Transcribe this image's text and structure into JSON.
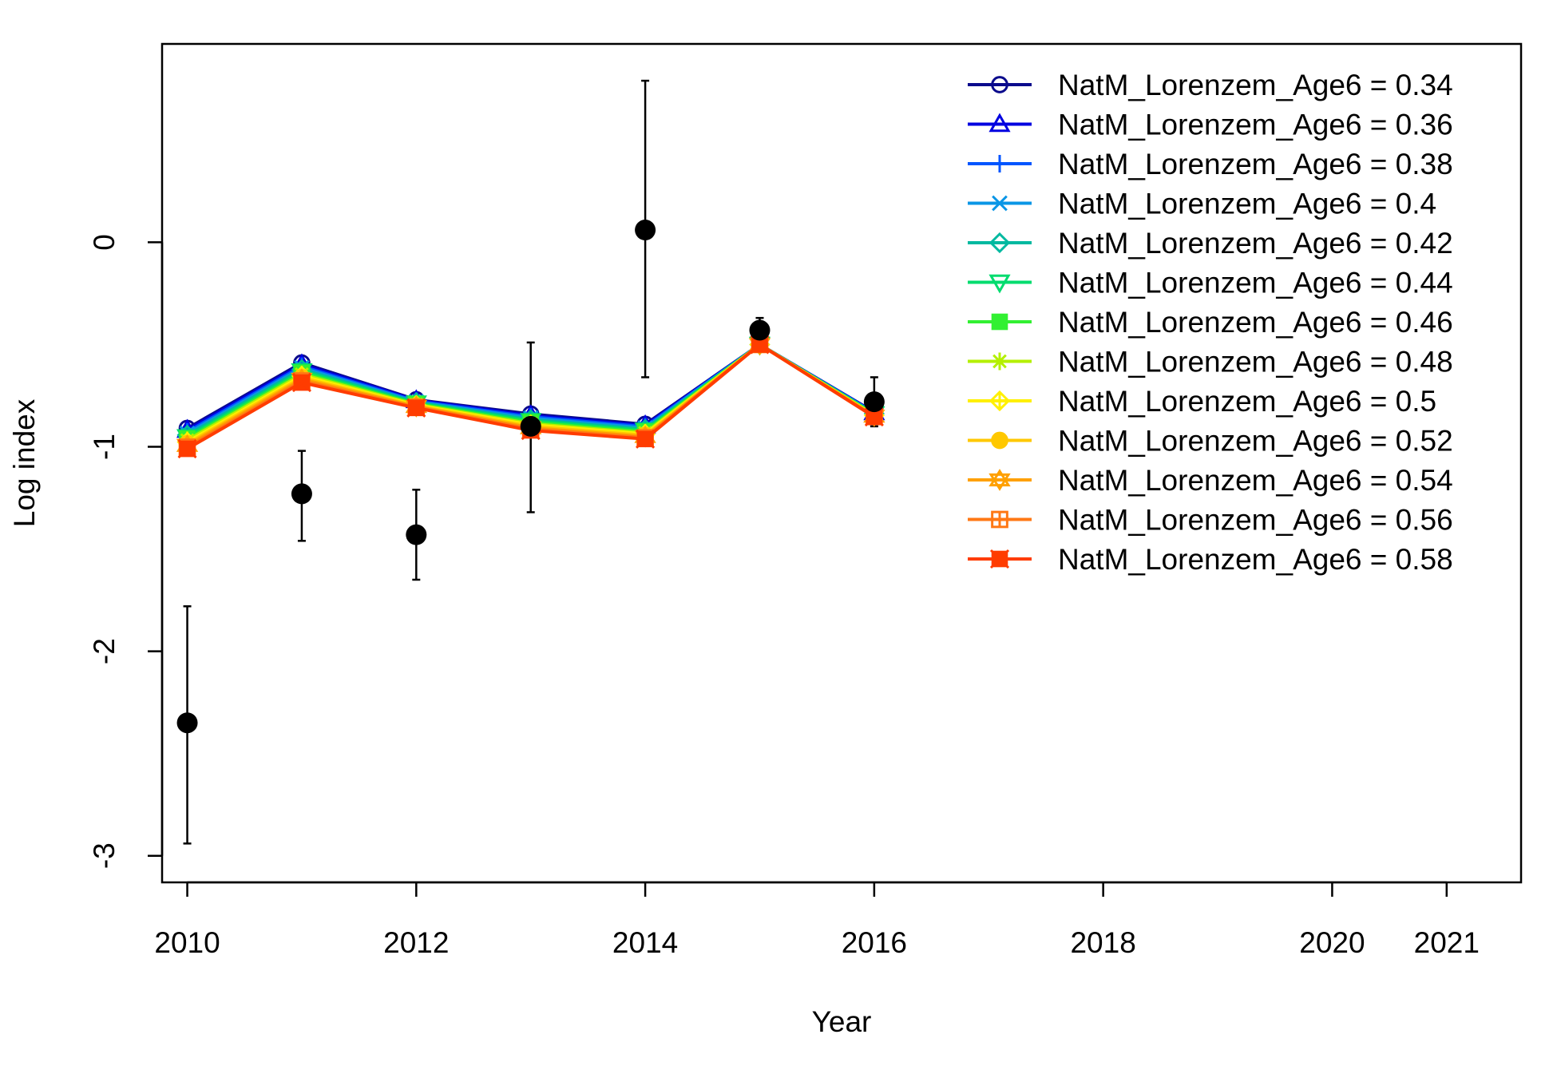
{
  "chart_data": {
    "type": "line",
    "title": "",
    "xlabel": "Year",
    "ylabel": "Log index",
    "xlim": [
      2009.78,
      2021.65
    ],
    "ylim": [
      -3.13,
      0.97
    ],
    "x_ticks": [
      2010,
      2012,
      2014,
      2016,
      2018,
      2020,
      2021
    ],
    "y_ticks": [
      0,
      -1,
      -2,
      -3
    ],
    "grid": false,
    "legend_position": "top-right",
    "observed": {
      "x": [
        2010,
        2011,
        2012,
        2013,
        2014,
        2015,
        2016
      ],
      "y": [
        -2.35,
        -1.23,
        -1.43,
        -0.9,
        0.06,
        -0.43,
        -0.78
      ],
      "lower": [
        -2.94,
        -1.46,
        -1.65,
        -1.32,
        -0.66,
        -0.49,
        -0.9
      ],
      "upper": [
        -1.78,
        -1.02,
        -1.21,
        -0.49,
        0.79,
        -0.37,
        -0.66
      ],
      "color": "#000000"
    },
    "years": [
      2010,
      2011,
      2012,
      2013,
      2014,
      2015,
      2016
    ],
    "series": [
      {
        "name": "NatM_Lorenzem_Age6 = 0.34",
        "color": "#0a0a8c",
        "marker": "circle-open",
        "values": [
          -0.91,
          -0.59,
          -0.77,
          -0.84,
          -0.89,
          -0.5,
          -0.83
        ]
      },
      {
        "name": "NatM_Lorenzem_Age6 = 0.36",
        "color": "#0000e0",
        "marker": "triangle-open",
        "values": [
          -0.918,
          -0.598,
          -0.773,
          -0.847,
          -0.896,
          -0.5,
          -0.832
        ]
      },
      {
        "name": "NatM_Lorenzem_Age6 = 0.38",
        "color": "#0055ff",
        "marker": "plus",
        "values": [
          -0.927,
          -0.606,
          -0.777,
          -0.853,
          -0.902,
          -0.5,
          -0.834
        ]
      },
      {
        "name": "NatM_Lorenzem_Age6 = 0.4",
        "color": "#0a96e6",
        "marker": "cross",
        "values": [
          -0.935,
          -0.614,
          -0.78,
          -0.86,
          -0.908,
          -0.5,
          -0.836
        ]
      },
      {
        "name": "NatM_Lorenzem_Age6 = 0.42",
        "color": "#00b9a0",
        "marker": "diamond-open",
        "values": [
          -0.943,
          -0.622,
          -0.783,
          -0.867,
          -0.914,
          -0.5,
          -0.838
        ]
      },
      {
        "name": "NatM_Lorenzem_Age6 = 0.44",
        "color": "#00dc6e",
        "marker": "triangle-down-open",
        "values": [
          -0.952,
          -0.63,
          -0.787,
          -0.873,
          -0.92,
          -0.5,
          -0.84
        ]
      },
      {
        "name": "NatM_Lorenzem_Age6 = 0.46",
        "color": "#32f032",
        "marker": "square-plus",
        "values": [
          -0.96,
          -0.638,
          -0.79,
          -0.88,
          -0.926,
          -0.5,
          -0.842
        ]
      },
      {
        "name": "NatM_Lorenzem_Age6 = 0.48",
        "color": "#b4f000",
        "marker": "asterisk",
        "values": [
          -0.968,
          -0.646,
          -0.793,
          -0.887,
          -0.932,
          -0.5,
          -0.844
        ]
      },
      {
        "name": "NatM_Lorenzem_Age6 = 0.5",
        "color": "#fff000",
        "marker": "diamond-plus",
        "values": [
          -0.977,
          -0.654,
          -0.797,
          -0.893,
          -0.938,
          -0.5,
          -0.846
        ]
      },
      {
        "name": "NatM_Lorenzem_Age6 = 0.52",
        "color": "#ffc800",
        "marker": "circle-plus",
        "values": [
          -0.985,
          -0.662,
          -0.8,
          -0.9,
          -0.944,
          -0.5,
          -0.848
        ]
      },
      {
        "name": "NatM_Lorenzem_Age6 = 0.54",
        "color": "#ffa000",
        "marker": "star-of-david",
        "values": [
          -0.993,
          -0.67,
          -0.803,
          -0.907,
          -0.95,
          -0.5,
          -0.85
        ]
      },
      {
        "name": "NatM_Lorenzem_Age6 = 0.56",
        "color": "#ff7814",
        "marker": "square-grid",
        "values": [
          -1.002,
          -0.678,
          -0.807,
          -0.913,
          -0.956,
          -0.5,
          -0.852
        ]
      },
      {
        "name": "NatM_Lorenzem_Age6 = 0.58",
        "color": "#ff3c00",
        "marker": "square-cross",
        "values": [
          -1.01,
          -0.686,
          -0.81,
          -0.92,
          -0.962,
          -0.5,
          -0.854
        ]
      }
    ]
  }
}
